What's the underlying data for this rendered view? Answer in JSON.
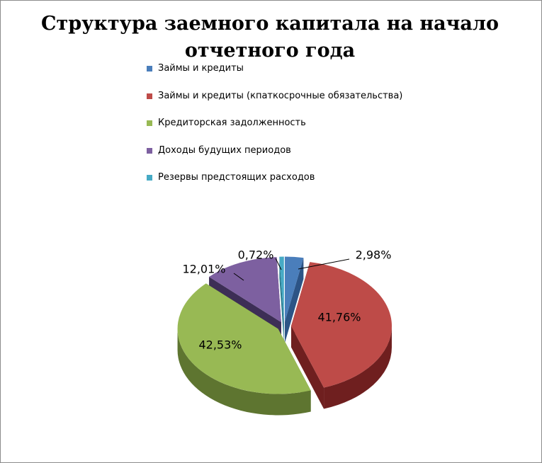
{
  "chart_data": {
    "type": "pie",
    "title": "Структура заемного капитала на начало отчетного года",
    "legend_position": "top",
    "categories": [
      "Займы и кредиты",
      "Займы и кредиты (кпаткосрочные обязательства)",
      "Кредиторская задолженность",
      "Доходы будущих периодов",
      "Резервы предстоящих расходов"
    ],
    "values": [
      2.98,
      41.76,
      42.53,
      12.01,
      0.72
    ],
    "labels": [
      "2,98%",
      "41,76%",
      "42,53%",
      "12,01%",
      "0,72%"
    ],
    "colors": [
      "#4a7ebb",
      "#be4b48",
      "#98b954",
      "#7d60a0",
      "#46aac5"
    ],
    "side_colors": [
      "#2c5486",
      "#6f1f1f",
      "#5e7530",
      "#3d2e56",
      "#2a7c91"
    ]
  }
}
